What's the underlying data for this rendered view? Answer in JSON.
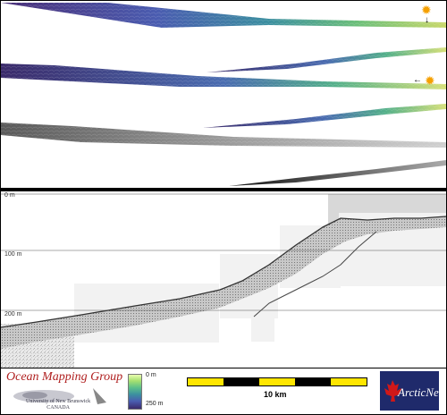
{
  "colors": {
    "panel_border": "#000000",
    "swath_low": "#3a2a6a",
    "swath_mid": "#3c8fa0",
    "swath_high": "#c9d86a",
    "logo_red": "#b02020",
    "arcticnet_blue": "#1f2a6b",
    "scale_yellow": "#ffe600"
  },
  "icons": {
    "sun_top": "sun-icon",
    "sun_bottom": "sun-icon",
    "arrow_down": "arrow-down-icon",
    "arrow_left": "arrow-left-icon"
  },
  "profile": {
    "depth_labels": [
      "0 m",
      "100 m",
      "200 m"
    ]
  },
  "legend": {
    "colorbar_top": "0 m",
    "colorbar_bottom": "250 m",
    "scale_label": "10 km"
  },
  "logos": {
    "omg_title": "Ocean Mapping Group",
    "unb_line1": "University of New Brunswick",
    "unb_line2": "CANADA",
    "arcticnet": "ArcticNet"
  }
}
